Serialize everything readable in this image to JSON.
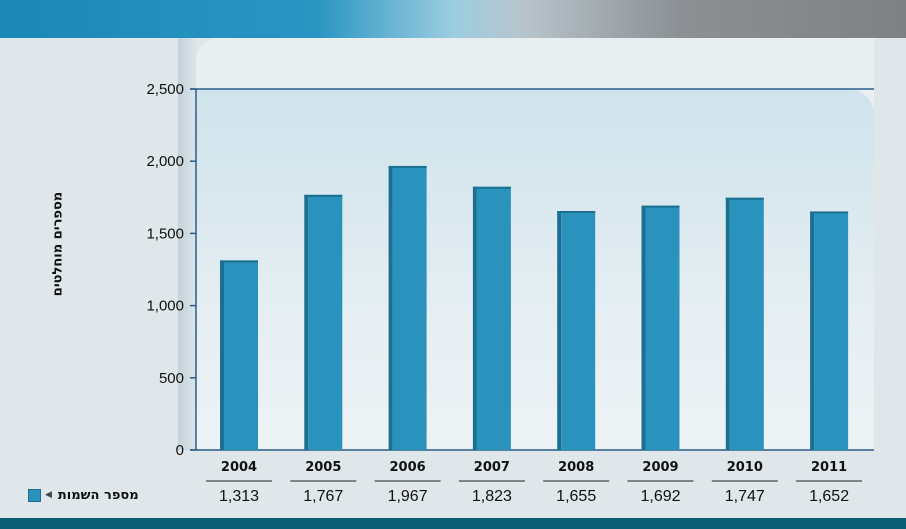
{
  "chart_data": {
    "type": "bar",
    "title": "",
    "xlabel": "",
    "ylabel": "מספרים מוחלטים",
    "categories": [
      "2004",
      "2005",
      "2006",
      "2007",
      "2008",
      "2009",
      "2010",
      "2011"
    ],
    "series": [
      {
        "name": "מספר השמות",
        "values": [
          1313,
          1767,
          1967,
          1823,
          1655,
          1692,
          1747,
          1652
        ],
        "value_labels": [
          "1,313",
          "1,767",
          "1,967",
          "1,823",
          "1,655",
          "1,692",
          "1,747",
          "1,652"
        ]
      }
    ],
    "ylim": [
      0,
      2500
    ],
    "yticks": [
      0,
      500,
      1000,
      1500,
      2000,
      2500
    ],
    "ytick_labels": [
      "0",
      "500",
      "1,000",
      "1,500",
      "2,000",
      "2,500"
    ],
    "grid": false,
    "legend": "bottom-left, inline with data table",
    "colors": {
      "bar": "#2993bd",
      "bar_shade": "#1c6f90",
      "axis": "#2a5d8a"
    }
  }
}
